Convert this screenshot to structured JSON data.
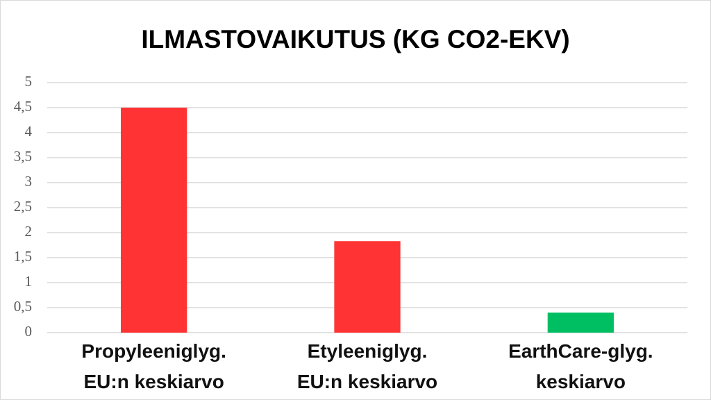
{
  "chart_data": {
    "type": "bar",
    "title": "ILMASTOVAIKUTUS (KG CO2-EKV)",
    "categories": [
      "Propyleeniglyg.\nEU:n keskiarvo",
      "Etyleeniglyg.\nEU:n keskiarvo",
      "EarthCare-glyg.\nkeskiarvo"
    ],
    "values": [
      4.5,
      1.83,
      0.4
    ],
    "colors": [
      "#ff3333",
      "#ff3333",
      "#00bf63"
    ],
    "ylim": [
      0,
      5
    ],
    "yticks": [
      0,
      {
        "value": 0.5,
        "label": "0,5"
      },
      1,
      {
        "value": 1.5,
        "label": "1,5"
      },
      2,
      {
        "value": 2.5,
        "label": "2,5"
      },
      3,
      {
        "value": 3.5,
        "label": "3,5"
      },
      4,
      {
        "value": 4.5,
        "label": "4,5"
      },
      5
    ],
    "grid": true
  }
}
